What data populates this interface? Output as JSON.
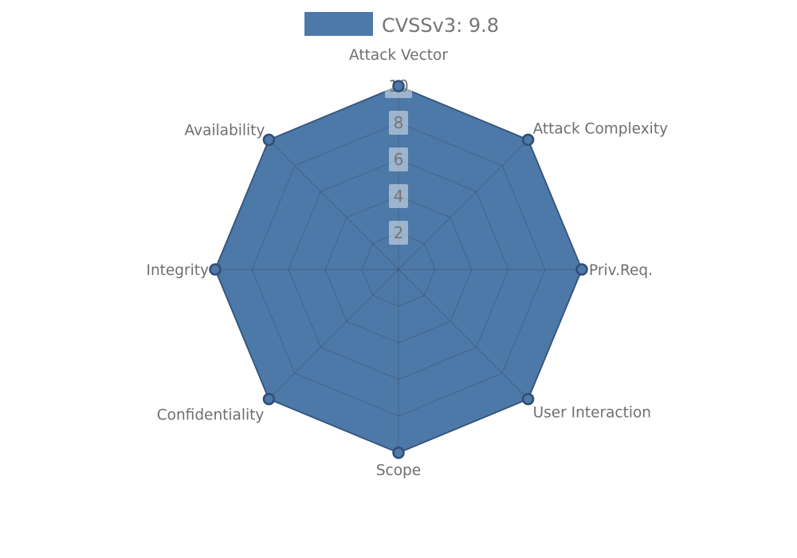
{
  "legend": {
    "label": "CVSSv3: 9.8",
    "swatch_color": "#4d79a8"
  },
  "chart_data": {
    "type": "radar",
    "categories": [
      "Attack Vector",
      "Attack Complexity",
      "Priv.Req.",
      "User Interaction",
      "Scope",
      "Confidentiality",
      "Integrity",
      "Availability"
    ],
    "series": [
      {
        "name": "CVSSv3: 9.8",
        "values": [
          10,
          10,
          10,
          10,
          10,
          10,
          10,
          10
        ]
      }
    ],
    "ticks": [
      2,
      4,
      6,
      8,
      10
    ],
    "rlim": [
      0,
      10
    ],
    "grid": true,
    "legend_position": "top-center",
    "colors": {
      "fill": "#4d79a8",
      "stroke": "#3b608c",
      "marker_stroke": "#2f4e75",
      "grid_line": "rgba(30,30,30,0.22)",
      "text": "#757575",
      "tick_box": "rgba(255,255,255,0.45)"
    }
  }
}
